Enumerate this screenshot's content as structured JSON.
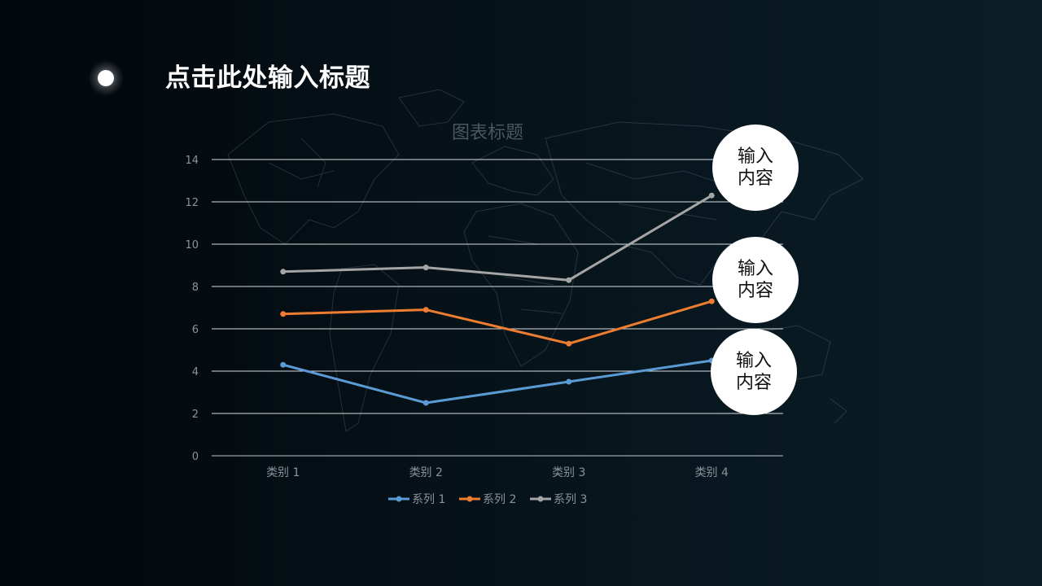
{
  "slide": {
    "title": "点击此处输入标题"
  },
  "callouts": [
    {
      "text": "输入内容"
    },
    {
      "text": "输入内容"
    },
    {
      "text": "输入内容"
    }
  ],
  "chart_data": {
    "type": "line",
    "title": "图表标题",
    "categories": [
      "类别 1",
      "类别 2",
      "类别 3",
      "类别 4"
    ],
    "series": [
      {
        "name": "系列 1",
        "values": [
          4.3,
          2.5,
          3.5,
          4.5
        ],
        "color": "#5b9bd5"
      },
      {
        "name": "系列 2",
        "values": [
          6.7,
          6.9,
          5.3,
          7.3
        ],
        "color": "#ed7d31"
      },
      {
        "name": "系列 3",
        "values": [
          8.7,
          8.9,
          8.3,
          12.3
        ],
        "color": "#a5a5a5"
      }
    ],
    "ylim": [
      0,
      14
    ],
    "yticks": [
      0,
      2,
      4,
      6,
      8,
      10,
      12,
      14
    ],
    "xlabel": "",
    "ylabel": "",
    "grid": true,
    "legend": "bottom"
  }
}
